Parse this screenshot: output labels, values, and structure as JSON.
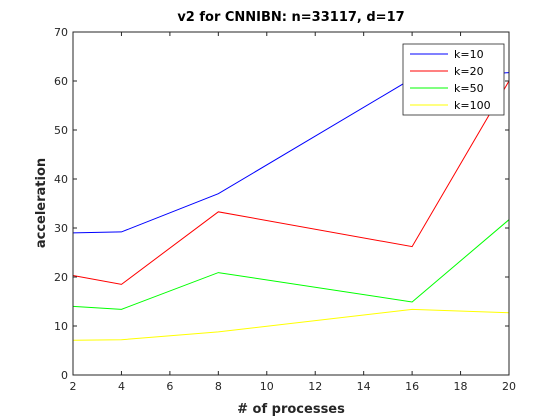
{
  "chart_data": {
    "type": "line",
    "title": "v2 for CNNIBN: n=33117, d=17",
    "xlabel": "# of processes",
    "ylabel": "acceleration",
    "xlim": [
      2,
      20
    ],
    "ylim": [
      0,
      70
    ],
    "xticks": [
      2,
      4,
      6,
      8,
      10,
      12,
      14,
      16,
      18,
      20
    ],
    "yticks": [
      0,
      10,
      20,
      30,
      40,
      50,
      60,
      70
    ],
    "grid": false,
    "legend_position": "top-right",
    "x": [
      2,
      4,
      8,
      16,
      20
    ],
    "series": [
      {
        "name": "k=10",
        "color": "#0000ff",
        "values": [
          29.0,
          29.2,
          37.0,
          60.5,
          61.7
        ]
      },
      {
        "name": "k=20",
        "color": "#ff0000",
        "values": [
          20.3,
          18.5,
          33.3,
          26.2,
          60.0
        ]
      },
      {
        "name": "k=50",
        "color": "#00ff00",
        "values": [
          14.0,
          13.4,
          20.9,
          14.9,
          31.7
        ]
      },
      {
        "name": "k=100",
        "color": "#ffff00",
        "values": [
          7.1,
          7.2,
          8.8,
          13.4,
          12.7
        ]
      }
    ]
  }
}
